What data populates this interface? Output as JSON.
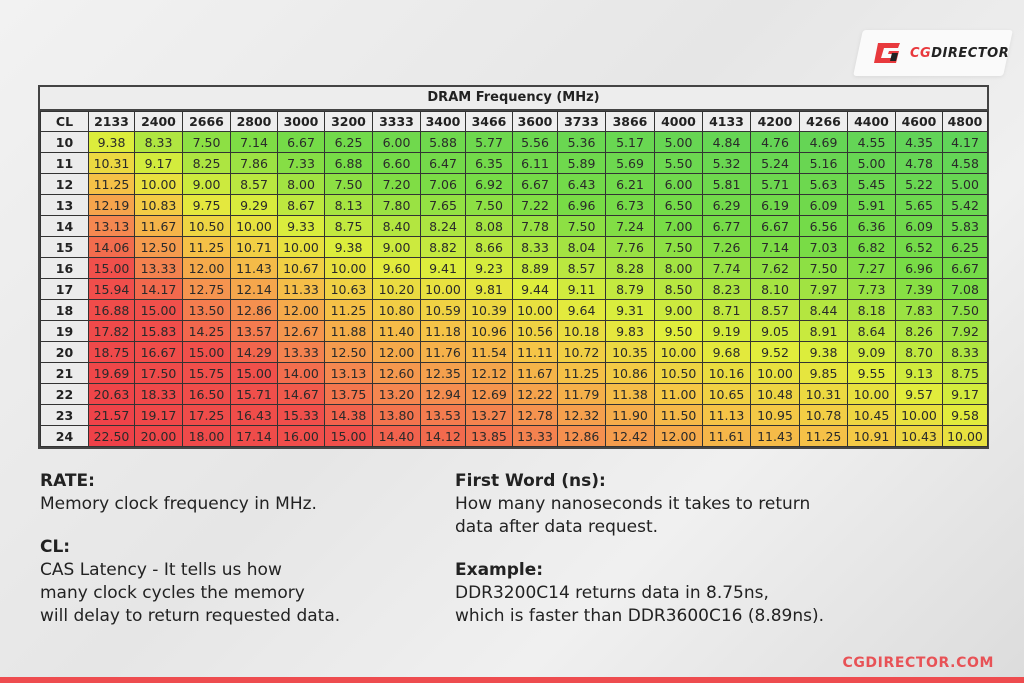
{
  "brand": {
    "logo_text_prefix": "CG",
    "logo_text_suffix": "DIRECTOR",
    "site_url": "CGDIRECTOR.COM",
    "accent_color": "#e8393d"
  },
  "table": {
    "title": "DRAM Frequency (MHz)",
    "corner_label": "CL",
    "frequencies": [
      "2133",
      "2400",
      "2666",
      "2800",
      "3000",
      "3200",
      "3333",
      "3400",
      "3466",
      "3600",
      "3733",
      "3866",
      "4000",
      "4133",
      "4200",
      "4266",
      "4400",
      "4600",
      "4800"
    ],
    "rows": [
      {
        "cl": "10",
        "values": [
          "9.38",
          "8.33",
          "7.50",
          "7.14",
          "6.67",
          "6.25",
          "6.00",
          "5.88",
          "5.77",
          "5.56",
          "5.36",
          "5.17",
          "5.00",
          "4.84",
          "4.76",
          "4.69",
          "4.55",
          "4.35",
          "4.17"
        ]
      },
      {
        "cl": "11",
        "values": [
          "10.31",
          "9.17",
          "8.25",
          "7.86",
          "7.33",
          "6.88",
          "6.60",
          "6.47",
          "6.35",
          "6.11",
          "5.89",
          "5.69",
          "5.50",
          "5.32",
          "5.24",
          "5.16",
          "5.00",
          "4.78",
          "4.58"
        ]
      },
      {
        "cl": "12",
        "values": [
          "11.25",
          "10.00",
          "9.00",
          "8.57",
          "8.00",
          "7.50",
          "7.20",
          "7.06",
          "6.92",
          "6.67",
          "6.43",
          "6.21",
          "6.00",
          "5.81",
          "5.71",
          "5.63",
          "5.45",
          "5.22",
          "5.00"
        ]
      },
      {
        "cl": "13",
        "values": [
          "12.19",
          "10.83",
          "9.75",
          "9.29",
          "8.67",
          "8.13",
          "7.80",
          "7.65",
          "7.50",
          "7.22",
          "6.96",
          "6.73",
          "6.50",
          "6.29",
          "6.19",
          "6.09",
          "5.91",
          "5.65",
          "5.42"
        ]
      },
      {
        "cl": "14",
        "values": [
          "13.13",
          "11.67",
          "10.50",
          "10.00",
          "9.33",
          "8.75",
          "8.40",
          "8.24",
          "8.08",
          "7.78",
          "7.50",
          "7.24",
          "7.00",
          "6.77",
          "6.67",
          "6.56",
          "6.36",
          "6.09",
          "5.83"
        ]
      },
      {
        "cl": "15",
        "values": [
          "14.06",
          "12.50",
          "11.25",
          "10.71",
          "10.00",
          "9.38",
          "9.00",
          "8.82",
          "8.66",
          "8.33",
          "8.04",
          "7.76",
          "7.50",
          "7.26",
          "7.14",
          "7.03",
          "6.82",
          "6.52",
          "6.25"
        ]
      },
      {
        "cl": "16",
        "values": [
          "15.00",
          "13.33",
          "12.00",
          "11.43",
          "10.67",
          "10.00",
          "9.60",
          "9.41",
          "9.23",
          "8.89",
          "8.57",
          "8.28",
          "8.00",
          "7.74",
          "7.62",
          "7.50",
          "7.27",
          "6.96",
          "6.67"
        ]
      },
      {
        "cl": "17",
        "values": [
          "15.94",
          "14.17",
          "12.75",
          "12.14",
          "11.33",
          "10.63",
          "10.20",
          "10.00",
          "9.81",
          "9.44",
          "9.11",
          "8.79",
          "8.50",
          "8.23",
          "8.10",
          "7.97",
          "7.73",
          "7.39",
          "7.08"
        ]
      },
      {
        "cl": "18",
        "values": [
          "16.88",
          "15.00",
          "13.50",
          "12.86",
          "12.00",
          "11.25",
          "10.80",
          "10.59",
          "10.39",
          "10.00",
          "9.64",
          "9.31",
          "9.00",
          "8.71",
          "8.57",
          "8.44",
          "8.18",
          "7.83",
          "7.50"
        ]
      },
      {
        "cl": "19",
        "values": [
          "17.82",
          "15.83",
          "14.25",
          "13.57",
          "12.67",
          "11.88",
          "11.40",
          "11.18",
          "10.96",
          "10.56",
          "10.18",
          "9.83",
          "9.50",
          "9.19",
          "9.05",
          "8.91",
          "8.64",
          "8.26",
          "7.92"
        ]
      },
      {
        "cl": "20",
        "values": [
          "18.75",
          "16.67",
          "15.00",
          "14.29",
          "13.33",
          "12.50",
          "12.00",
          "11.76",
          "11.54",
          "11.11",
          "10.72",
          "10.35",
          "10.00",
          "9.68",
          "9.52",
          "9.38",
          "9.09",
          "8.70",
          "8.33"
        ]
      },
      {
        "cl": "21",
        "values": [
          "19.69",
          "17.50",
          "15.75",
          "15.00",
          "14.00",
          "13.13",
          "12.60",
          "12.35",
          "12.12",
          "11.67",
          "11.25",
          "10.86",
          "10.50",
          "10.16",
          "10.00",
          "9.85",
          "9.55",
          "9.13",
          "8.75"
        ]
      },
      {
        "cl": "22",
        "values": [
          "20.63",
          "18.33",
          "16.50",
          "15.71",
          "14.67",
          "13.75",
          "13.20",
          "12.94",
          "12.69",
          "12.22",
          "11.79",
          "11.38",
          "11.00",
          "10.65",
          "10.48",
          "10.31",
          "10.00",
          "9.57",
          "9.17"
        ]
      },
      {
        "cl": "23",
        "values": [
          "21.57",
          "19.17",
          "17.25",
          "16.43",
          "15.33",
          "14.38",
          "13.80",
          "13.53",
          "13.27",
          "12.78",
          "12.32",
          "11.90",
          "11.50",
          "11.13",
          "10.95",
          "10.78",
          "10.45",
          "10.00",
          "9.58"
        ]
      },
      {
        "cl": "24",
        "values": [
          "22.50",
          "20.00",
          "18.00",
          "17.14",
          "16.00",
          "15.00",
          "14.40",
          "14.12",
          "13.85",
          "13.33",
          "12.86",
          "12.42",
          "12.00",
          "11.61",
          "11.43",
          "11.25",
          "10.91",
          "10.43",
          "10.00"
        ]
      }
    ]
  },
  "notes": {
    "rate_heading": "RATE:",
    "rate_text": "Memory clock frequency in MHz.",
    "cl_heading": "CL:",
    "cl_text_1": "CAS Latency - It tells us how",
    "cl_text_2": "many clock cycles the memory",
    "cl_text_3": "will delay to return requested data.",
    "fw_heading": "First Word (ns):",
    "fw_text_1": "How many nanoseconds it takes to return",
    "fw_text_2": "data after data request.",
    "ex_heading": "Example:",
    "ex_text_1": "DDR3200C14 returns data in 8.75ns,",
    "ex_text_2": "which is faster than DDR3600C16 (8.89ns)."
  },
  "colors": {
    "low_latency": "#5fd35a",
    "mid_latency": "#e4ee3c",
    "high_latency": "#f0404a"
  },
  "chart_data": {
    "type": "heatmap",
    "title": "DRAM Frequency (MHz)",
    "xlabel": "DRAM Frequency (MHz)",
    "ylabel": "CL",
    "x": [
      2133,
      2400,
      2666,
      2800,
      3000,
      3200,
      3333,
      3400,
      3466,
      3600,
      3733,
      3866,
      4000,
      4133,
      4200,
      4266,
      4400,
      4600,
      4800
    ],
    "y": [
      10,
      11,
      12,
      13,
      14,
      15,
      16,
      17,
      18,
      19,
      20,
      21,
      22,
      23,
      24
    ],
    "value_label": "First Word latency (ns)",
    "color_scale": "green (low) → yellow → orange → red (high)",
    "values": [
      [
        9.38,
        8.33,
        7.5,
        7.14,
        6.67,
        6.25,
        6.0,
        5.88,
        5.77,
        5.56,
        5.36,
        5.17,
        5.0,
        4.84,
        4.76,
        4.69,
        4.55,
        4.35,
        4.17
      ],
      [
        10.31,
        9.17,
        8.25,
        7.86,
        7.33,
        6.88,
        6.6,
        6.47,
        6.35,
        6.11,
        5.89,
        5.69,
        5.5,
        5.32,
        5.24,
        5.16,
        5.0,
        4.78,
        4.58
      ],
      [
        11.25,
        10.0,
        9.0,
        8.57,
        8.0,
        7.5,
        7.2,
        7.06,
        6.92,
        6.67,
        6.43,
        6.21,
        6.0,
        5.81,
        5.71,
        5.63,
        5.45,
        5.22,
        5.0
      ],
      [
        12.19,
        10.83,
        9.75,
        9.29,
        8.67,
        8.13,
        7.8,
        7.65,
        7.5,
        7.22,
        6.96,
        6.73,
        6.5,
        6.29,
        6.19,
        6.09,
        5.91,
        5.65,
        5.42
      ],
      [
        13.13,
        11.67,
        10.5,
        10.0,
        9.33,
        8.75,
        8.4,
        8.24,
        8.08,
        7.78,
        7.5,
        7.24,
        7.0,
        6.77,
        6.67,
        6.56,
        6.36,
        6.09,
        5.83
      ],
      [
        14.06,
        12.5,
        11.25,
        10.71,
        10.0,
        9.38,
        9.0,
        8.82,
        8.66,
        8.33,
        8.04,
        7.76,
        7.5,
        7.26,
        7.14,
        7.03,
        6.82,
        6.52,
        6.25
      ],
      [
        15.0,
        13.33,
        12.0,
        11.43,
        10.67,
        10.0,
        9.6,
        9.41,
        9.23,
        8.89,
        8.57,
        8.28,
        8.0,
        7.74,
        7.62,
        7.5,
        7.27,
        6.96,
        6.67
      ],
      [
        15.94,
        14.17,
        12.75,
        12.14,
        11.33,
        10.63,
        10.2,
        10.0,
        9.81,
        9.44,
        9.11,
        8.79,
        8.5,
        8.23,
        8.1,
        7.97,
        7.73,
        7.39,
        7.08
      ],
      [
        16.88,
        15.0,
        13.5,
        12.86,
        12.0,
        11.25,
        10.8,
        10.59,
        10.39,
        10.0,
        9.64,
        9.31,
        9.0,
        8.71,
        8.57,
        8.44,
        8.18,
        7.83,
        7.5
      ],
      [
        17.82,
        15.83,
        14.25,
        13.57,
        12.67,
        11.88,
        11.4,
        11.18,
        10.96,
        10.56,
        10.18,
        9.83,
        9.5,
        9.19,
        9.05,
        8.91,
        8.64,
        8.26,
        7.92
      ],
      [
        18.75,
        16.67,
        15.0,
        14.29,
        13.33,
        12.5,
        12.0,
        11.76,
        11.54,
        11.11,
        10.72,
        10.35,
        10.0,
        9.68,
        9.52,
        9.38,
        9.09,
        8.7,
        8.33
      ],
      [
        19.69,
        17.5,
        15.75,
        15.0,
        14.0,
        13.13,
        12.6,
        12.35,
        12.12,
        11.67,
        11.25,
        10.86,
        10.5,
        10.16,
        10.0,
        9.85,
        9.55,
        9.13,
        8.75
      ],
      [
        20.63,
        18.33,
        16.5,
        15.71,
        14.67,
        13.75,
        13.2,
        12.94,
        12.69,
        12.22,
        11.79,
        11.38,
        11.0,
        10.65,
        10.48,
        10.31,
        10.0,
        9.57,
        9.17
      ],
      [
        21.57,
        19.17,
        17.25,
        16.43,
        15.33,
        14.38,
        13.8,
        13.53,
        13.27,
        12.78,
        12.32,
        11.9,
        11.5,
        11.13,
        10.95,
        10.78,
        10.45,
        10.0,
        9.58
      ],
      [
        22.5,
        20.0,
        18.0,
        17.14,
        16.0,
        15.0,
        14.4,
        14.12,
        13.85,
        13.33,
        12.86,
        12.42,
        12.0,
        11.61,
        11.43,
        11.25,
        10.91,
        10.43,
        10.0
      ]
    ]
  }
}
